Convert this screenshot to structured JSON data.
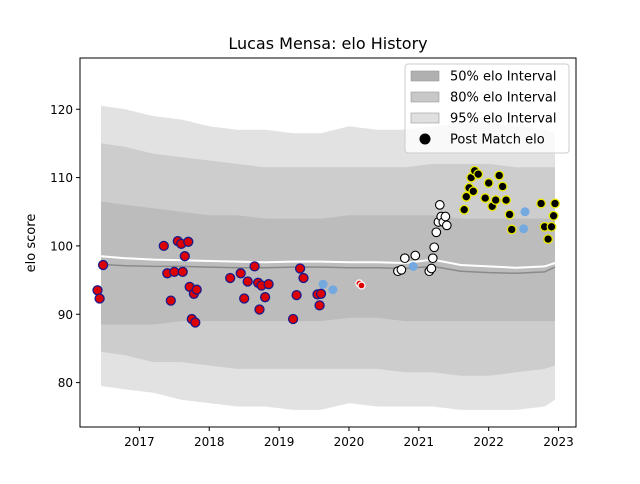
{
  "chart_data": {
    "type": "scatter",
    "title": "Lucas Mensa: elo History",
    "xlabel": "",
    "ylabel": "elo score",
    "xlim": [
      2016.15,
      2023.25
    ],
    "ylim": [
      73.5,
      127.5
    ],
    "x_ticks": [
      2017,
      2018,
      2019,
      2020,
      2021,
      2022,
      2023
    ],
    "x_tick_labels": [
      "2017",
      "2018",
      "2019",
      "2020",
      "2021",
      "2022",
      "2023"
    ],
    "y_ticks": [
      80,
      90,
      100,
      110,
      120
    ],
    "y_tick_labels": [
      "80",
      "90",
      "100",
      "110",
      "120"
    ],
    "grid": false,
    "legend": {
      "placement": "top-right",
      "entries": [
        {
          "label": "50% elo Interval",
          "kind": "band",
          "color": "#b0b0b0"
        },
        {
          "label": "80% elo Interval",
          "kind": "band",
          "color": "#c8c8c8"
        },
        {
          "label": "95% elo Interval",
          "kind": "band",
          "color": "#e0e0e0"
        },
        {
          "label": "Post Match elo",
          "kind": "marker",
          "color": "#000000"
        }
      ]
    },
    "colors": {
      "band95": "#e2e2e2",
      "band80": "#cdcdcd",
      "band50": "#bcbcbc",
      "median_line": "#8a8a8a",
      "mean_line": "#ffffff",
      "red_point": "#dd0000",
      "red_edge": "#1a1a8c",
      "blue_point": "#74a9e0",
      "white_point": "#ffffff",
      "white_edge": "#000000",
      "black_point": "#000000",
      "yellow_edge": "#e8e800"
    },
    "bands_x": [
      2016.45,
      2016.8,
      2017.2,
      2017.6,
      2018.0,
      2018.4,
      2018.8,
      2019.2,
      2019.6,
      2020.0,
      2020.4,
      2020.8,
      2021.2,
      2021.6,
      2022.0,
      2022.4,
      2022.8,
      2022.95
    ],
    "band95_upper": [
      120.5,
      120.0,
      119.0,
      118.5,
      117.5,
      117.0,
      117.0,
      116.5,
      116.5,
      117.5,
      117.0,
      117.0,
      117.5,
      118.0,
      118.0,
      117.5,
      117.0,
      116.5
    ],
    "band95_lower": [
      79.5,
      79.0,
      78.5,
      77.5,
      77.0,
      76.5,
      76.5,
      76.0,
      76.0,
      77.0,
      76.5,
      76.5,
      76.5,
      76.0,
      76.0,
      76.0,
      76.5,
      77.5
    ],
    "band80_upper": [
      115.0,
      114.5,
      113.5,
      113.0,
      112.5,
      112.0,
      111.5,
      111.5,
      111.5,
      111.5,
      111.5,
      111.5,
      112.0,
      112.0,
      112.0,
      111.5,
      111.5,
      111.5
    ],
    "band80_lower": [
      84.5,
      84.0,
      83.0,
      83.0,
      82.5,
      82.0,
      82.0,
      82.0,
      82.0,
      82.0,
      82.0,
      81.5,
      81.5,
      81.0,
      81.0,
      81.5,
      82.0,
      82.5
    ],
    "band50_upper": [
      106.5,
      106.0,
      105.5,
      105.0,
      104.5,
      104.5,
      104.0,
      104.0,
      104.0,
      104.5,
      104.5,
      104.5,
      104.5,
      104.0,
      104.0,
      104.0,
      104.0,
      104.0
    ],
    "band50_lower": [
      88.5,
      88.5,
      88.5,
      89.0,
      89.0,
      89.0,
      89.0,
      89.0,
      89.0,
      89.5,
      89.5,
      89.0,
      89.0,
      89.0,
      89.0,
      89.0,
      89.0,
      89.0
    ],
    "median_line": [
      97.3,
      97.1,
      97.0,
      97.0,
      96.9,
      96.8,
      96.8,
      96.9,
      96.9,
      96.8,
      96.8,
      96.7,
      97.0,
      96.3,
      96.1,
      96.0,
      96.2,
      96.9
    ],
    "mean_line": [
      98.5,
      98.2,
      98.0,
      97.9,
      97.8,
      97.7,
      97.6,
      97.7,
      97.7,
      97.6,
      97.6,
      97.5,
      98.0,
      97.2,
      97.0,
      96.8,
      97.0,
      97.5
    ],
    "series": [
      {
        "style": "red",
        "x": [
          2016.4,
          2016.43,
          2016.48,
          2017.35,
          2017.4,
          2017.45,
          2017.5,
          2017.55,
          2017.6,
          2017.62,
          2017.65,
          2017.7,
          2017.72,
          2017.75,
          2017.78,
          2017.8,
          2017.82,
          2018.3,
          2018.45,
          2018.5,
          2018.55,
          2018.65,
          2018.7,
          2018.72,
          2018.75,
          2018.8,
          2018.85,
          2019.2,
          2019.25,
          2019.3,
          2019.35,
          2019.55,
          2019.58,
          2019.6
        ],
        "y": [
          93.5,
          92.3,
          97.2,
          100.0,
          96.0,
          92.0,
          96.2,
          100.7,
          100.3,
          96.2,
          98.5,
          100.6,
          94.0,
          89.3,
          93.0,
          88.8,
          93.6,
          95.3,
          96.0,
          92.3,
          94.8,
          97.0,
          94.6,
          90.7,
          94.2,
          92.5,
          94.4,
          89.3,
          92.8,
          96.7,
          95.3,
          92.9,
          91.3,
          93.0
        ]
      },
      {
        "style": "blue",
        "x": [
          2019.63,
          2019.77,
          2020.92,
          2022.5,
          2022.52
        ],
        "y": [
          94.4,
          93.6,
          97.0,
          102.5,
          105.0
        ]
      },
      {
        "style": "small_red",
        "x": [
          2020.15,
          2020.18
        ],
        "y": [
          94.5,
          94.2
        ]
      },
      {
        "style": "white",
        "x": [
          2020.7,
          2020.75,
          2020.8,
          2020.95,
          2021.15,
          2021.18,
          2021.2,
          2021.22,
          2021.25,
          2021.28,
          2021.3,
          2021.32,
          2021.35,
          2021.38,
          2021.4
        ],
        "y": [
          96.3,
          96.5,
          98.2,
          98.6,
          96.3,
          96.7,
          98.2,
          99.8,
          102.0,
          103.5,
          106.0,
          104.3,
          103.5,
          104.3,
          103.0
        ]
      },
      {
        "style": "yellow",
        "x": [
          2021.65,
          2021.68,
          2021.72,
          2021.75,
          2021.78,
          2021.8,
          2021.85,
          2021.95,
          2022.0,
          2022.05,
          2022.1,
          2022.15,
          2022.2,
          2022.25,
          2022.3,
          2022.33,
          2022.75,
          2022.8,
          2022.85,
          2022.9,
          2022.93,
          2022.95
        ],
        "y": [
          105.3,
          107.2,
          108.5,
          110.0,
          108.0,
          111.0,
          110.5,
          107.0,
          109.2,
          105.8,
          106.7,
          110.3,
          108.7,
          106.7,
          104.6,
          102.4,
          106.2,
          102.8,
          101.0,
          102.8,
          104.4,
          106.2
        ]
      }
    ]
  }
}
